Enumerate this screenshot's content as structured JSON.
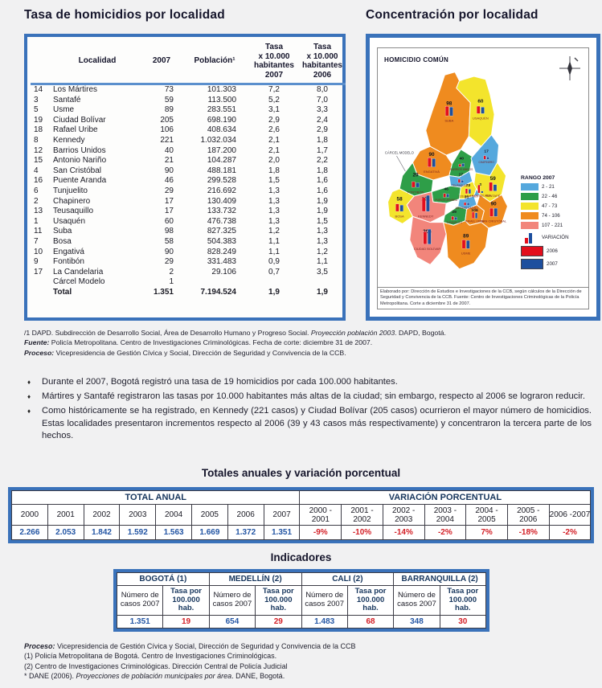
{
  "titles": {
    "left": "Tasa de homicidios por localidad",
    "right": "Concentración por localidad",
    "annual": "Totales anuales y variación porcentual",
    "indicators": "Indicadores"
  },
  "locality_table": {
    "headers": {
      "localidad": "Localidad",
      "y2007": "2007",
      "poblacion": "Población¹",
      "tasa2007": "Tasa\nx 10.000\nhabitantes\n2007",
      "tasa2006": "Tasa\nx 10.000\nhabitantes\n2006"
    },
    "rows": [
      {
        "num": "14",
        "name": "Los Mártires",
        "cases": "73",
        "pop": "101.303",
        "rate2007": "7,2",
        "rate2006": "8,0"
      },
      {
        "num": "3",
        "name": "Santafé",
        "cases": "59",
        "pop": "113.500",
        "rate2007": "5,2",
        "rate2006": "7,0"
      },
      {
        "num": "5",
        "name": "Usme",
        "cases": "89",
        "pop": "283.551",
        "rate2007": "3,1",
        "rate2006": "3,3"
      },
      {
        "num": "19",
        "name": "Ciudad Bolívar",
        "cases": "205",
        "pop": "698.190",
        "rate2007": "2,9",
        "rate2006": "2,4"
      },
      {
        "num": "18",
        "name": "Rafael Uribe",
        "cases": "106",
        "pop": "408.634",
        "rate2007": "2,6",
        "rate2006": "2,9"
      },
      {
        "num": "8",
        "name": "Kennedy",
        "cases": "221",
        "pop": "1.032.034",
        "rate2007": "2,1",
        "rate2006": "1,8"
      },
      {
        "num": "12",
        "name": "Barrios Unidos",
        "cases": "40",
        "pop": "187.200",
        "rate2007": "2,1",
        "rate2006": "1,7"
      },
      {
        "num": "15",
        "name": "Antonio Nariño",
        "cases": "21",
        "pop": "104.287",
        "rate2007": "2,0",
        "rate2006": "2,2"
      },
      {
        "num": "4",
        "name": "San Cristóbal",
        "cases": "90",
        "pop": "488.181",
        "rate2007": "1,8",
        "rate2006": "1,8"
      },
      {
        "num": "16",
        "name": "Puente Aranda",
        "cases": "46",
        "pop": "299.528",
        "rate2007": "1,5",
        "rate2006": "1,6"
      },
      {
        "num": "6",
        "name": "Tunjuelito",
        "cases": "29",
        "pop": "216.692",
        "rate2007": "1,3",
        "rate2006": "1,6"
      },
      {
        "num": "2",
        "name": "Chapinero",
        "cases": "17",
        "pop": "130.409",
        "rate2007": "1,3",
        "rate2006": "1,9"
      },
      {
        "num": "13",
        "name": "Teusaquillo",
        "cases": "17",
        "pop": "133.732",
        "rate2007": "1,3",
        "rate2006": "1,9"
      },
      {
        "num": "1",
        "name": "Usaquén",
        "cases": "60",
        "pop": "476.738",
        "rate2007": "1,3",
        "rate2006": "1,5"
      },
      {
        "num": "11",
        "name": "Suba",
        "cases": "98",
        "pop": "827.325",
        "rate2007": "1,2",
        "rate2006": "1,3"
      },
      {
        "num": "7",
        "name": "Bosa",
        "cases": "58",
        "pop": "504.383",
        "rate2007": "1,1",
        "rate2006": "1,3"
      },
      {
        "num": "10",
        "name": "Engativá",
        "cases": "90",
        "pop": "828.249",
        "rate2007": "1,1",
        "rate2006": "1,2"
      },
      {
        "num": "9",
        "name": "Fontibón",
        "cases": "29",
        "pop": "331.483",
        "rate2007": "0,9",
        "rate2006": "1,1"
      },
      {
        "num": "17",
        "name": "La Candelaria",
        "cases": "2",
        "pop": "29.106",
        "rate2007": "0,7",
        "rate2006": "3,5"
      },
      {
        "num": "",
        "name": "Cárcel Modelo",
        "cases": "1",
        "pop": "",
        "rate2007": "",
        "rate2006": ""
      }
    ],
    "total": {
      "num": "",
      "name": "Total",
      "cases": "1.351",
      "pop": "7.194.524",
      "rate2007": "1,9",
      "rate2006": "1,9"
    }
  },
  "footnotes": [
    [
      {
        "t": "/1 DAPD. Subdirección de Desarrollo Social, Área de Desarrollo Humano y Progreso Social. "
      },
      {
        "t": "Proyección población 2003",
        "i": true
      },
      {
        "t": ". DAPD, Bogotá."
      }
    ],
    [
      {
        "t": "Fuente:",
        "i": true,
        "b": true
      },
      {
        "t": "  Policía Metropolitana. Centro de Investigaciones Criminológicas. Fecha de corte: diciembre 31 de 2007."
      }
    ],
    [
      {
        "t": "Proceso:",
        "i": true,
        "b": true
      },
      {
        "t": " Vicepresidencia de Gestión Cívica y Social, Dirección de Seguridad y Convivencia de la CCB."
      }
    ]
  ],
  "bullets": [
    "Durante el 2007, Bogotá registró una tasa de 19 homicidios por cada 100.000 habitantes.",
    "Mártires y Santafé registraron las tasas por 10.000 habitantes más altas de la ciudad; sin embargo, respecto al 2006 se lograron reducir.",
    "Como históricamente se ha registrado, en Kennedy (221 casos) y Ciudad Bolívar (205 casos) ocurrieron el mayor número de homicidios. Estas localidades presentaron incrementos respecto al 2006 (39 y 43 casos más respectivamente) y concentraron la tercera parte de los hechos."
  ],
  "annual": {
    "total_header": "TOTAL ANUAL",
    "variation_header": "VARIACIÓN PORCENTUAL",
    "years": [
      "2000",
      "2001",
      "2002",
      "2003",
      "2004",
      "2005",
      "2006",
      "2007"
    ],
    "totals": [
      "2.266",
      "2.053",
      "1.842",
      "1.592",
      "1.563",
      "1.669",
      "1.372",
      "1.351"
    ],
    "periods": [
      "2000 - 2001",
      "2001 - 2002",
      "2002 - 2003",
      "2003 - 2004",
      "2004 - 2005",
      "2005 - 2006",
      "2006 -2007"
    ],
    "variations": [
      "-9%",
      "-10%",
      "-14%",
      "-2%",
      "7%",
      "-18%",
      "-2%"
    ]
  },
  "indicators": {
    "cases_header": "Número de casos 2007",
    "rate_header": "Tasa por 100.000 hab.",
    "cities": [
      {
        "name": "BOGOTÁ (1)",
        "cases": "1.351",
        "rate": "19"
      },
      {
        "name": "MEDELLÍN (2)",
        "cases": "654",
        "rate": "29"
      },
      {
        "name": "CALI (2)",
        "cases": "1.483",
        "rate": "68"
      },
      {
        "name": "BARRANQUILLA (2)",
        "cases": "348",
        "rate": "30"
      }
    ]
  },
  "footer_notes": [
    [
      {
        "t": "Proceso:",
        "i": true,
        "b": true
      },
      {
        "t": " Vicepresidencia de Gestión Cívica y Social,  Dirección de Seguridad y Convivencia de la CCB"
      }
    ],
    [
      {
        "t": "(1) Policía Metropolitana de Bogotá. Centro de Investigaciones Criminológicas."
      }
    ],
    [
      {
        "t": "(2) Centro de Investigaciones Criminológicas. Dirección Central de Policía Judicial"
      }
    ],
    [
      {
        "t": "* DANE (2006). "
      },
      {
        "t": "Proyecciones de población municipales por área",
        "i": true
      },
      {
        "t": ". DANE, Bogotá."
      }
    ]
  ],
  "map": {
    "title": "HOMICIDIO COMÚN",
    "legend_title": "RANGO 2007",
    "legend": [
      {
        "label": "2 - 21",
        "min": 2,
        "max": 21,
        "color": "#55a8dd"
      },
      {
        "label": "22 - 46",
        "min": 22,
        "max": 46,
        "color": "#2e9e48"
      },
      {
        "label": "47 - 73",
        "min": 47,
        "max": 73,
        "color": "#f3e42c"
      },
      {
        "label": "74 - 106",
        "min": 74,
        "max": 106,
        "color": "#ef8b1f"
      },
      {
        "label": "107 - 221",
        "min": 107,
        "max": 221,
        "color": "#f2857b"
      }
    ],
    "variation_label": "VARIACIÓN",
    "year_legend": [
      {
        "label": "2006",
        "color": "#e30e1c"
      },
      {
        "label": "2007",
        "color": "#1d4f9e"
      }
    ],
    "carcel_label": "CÁRCEL MODELO",
    "caption": "Elaborado por: Dirección de Estudios e Investigaciones de la CCB, según cálculos de la Dirección de Seguridad y Convivencia de la CCB. Fuente: Centro de Investigaciones Criminológicas de la Policía Metropolitana. Corte a diciembre 31 de 2007.",
    "regions": [
      {
        "id": "suba",
        "name": "Suba",
        "value": 98
      },
      {
        "id": "usaquen",
        "name": "Usaquén",
        "value": 60
      },
      {
        "id": "engativa",
        "name": "Engativá",
        "value": 90
      },
      {
        "id": "fontibon",
        "name": "Fontibón",
        "value": 29
      },
      {
        "id": "barrios",
        "name": "Barrios Unidos",
        "value": 40
      },
      {
        "id": "chapinero",
        "name": "Chapinero",
        "value": 17
      },
      {
        "id": "teusaquillo",
        "name": "Teusaquillo",
        "value": 17
      },
      {
        "id": "puente",
        "name": "Puente Aranda",
        "value": 46
      },
      {
        "id": "martires",
        "name": "Los Mártires",
        "value": 73
      },
      {
        "id": "candelaria",
        "name": "La Candelaria",
        "value": 2
      },
      {
        "id": "santafe",
        "name": "Santafé",
        "value": 59
      },
      {
        "id": "antonio",
        "name": "Antonio Nariño",
        "value": 21
      },
      {
        "id": "kennedy",
        "name": "Kennedy",
        "value": 221
      },
      {
        "id": "bosa",
        "name": "Bosa",
        "value": 58
      },
      {
        "id": "tunjuelito",
        "name": "Tunjuelito",
        "value": 29
      },
      {
        "id": "rafael",
        "name": "Rafael Uribe",
        "value": 106
      },
      {
        "id": "sancristobal",
        "name": "San Cristóbal",
        "value": 90
      },
      {
        "id": "ciudadbolivar",
        "name": "Ciudad Bolívar",
        "value": 205
      },
      {
        "id": "usme",
        "name": "Usme",
        "value": 89
      }
    ]
  }
}
